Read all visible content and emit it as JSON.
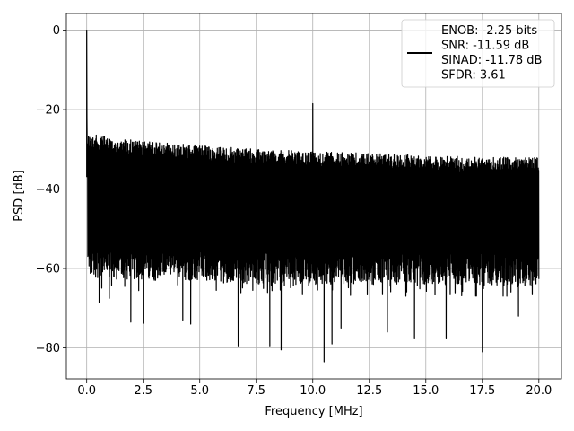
{
  "chart_data": {
    "type": "line",
    "title": "",
    "xlabel": "Frequency [MHz]",
    "ylabel": "PSD [dB]",
    "xlim": [
      -0.9,
      21.0
    ],
    "ylim": [
      -87.8,
      4.2
    ],
    "x_ticks": [
      0.0,
      2.5,
      5.0,
      7.5,
      10.0,
      12.5,
      15.0,
      17.5,
      20.0
    ],
    "x_tick_labels": [
      "0.0",
      "2.5",
      "5.0",
      "7.5",
      "10.0",
      "12.5",
      "15.0",
      "17.5",
      "20.0"
    ],
    "y_ticks": [
      0,
      -20,
      -40,
      -60,
      -80
    ],
    "y_tick_labels": [
      "0",
      "−20",
      "−40",
      "−60",
      "−80"
    ],
    "grid": true,
    "legend_position": "top-right",
    "series": [
      {
        "color": "#000000",
        "x_range": [
          0.0,
          20.0
        ],
        "peaks": [
          {
            "x": 0.0,
            "y": 0.0
          },
          {
            "x": 10.0,
            "y": -18.5
          }
        ],
        "noise_envelope": {
          "x": [
            0.05,
            1.0,
            2.5,
            5.0,
            7.5,
            10.0,
            12.5,
            15.0,
            17.5,
            20.0
          ],
          "upper": [
            -26,
            -27,
            -28,
            -29,
            -30,
            -30.5,
            -31,
            -31.5,
            -32,
            -32
          ],
          "lower_typical": [
            -62,
            -63,
            -63,
            -63,
            -64,
            -64,
            -64,
            -64,
            -64,
            -65
          ]
        },
        "dips": [
          {
            "x": 0.55,
            "y": -68.5
          },
          {
            "x": 1.0,
            "y": -67.5
          },
          {
            "x": 1.95,
            "y": -73.5
          },
          {
            "x": 2.5,
            "y": -73.8
          },
          {
            "x": 4.25,
            "y": -73.0
          },
          {
            "x": 4.6,
            "y": -74.0
          },
          {
            "x": 6.7,
            "y": -79.5
          },
          {
            "x": 8.1,
            "y": -79.5
          },
          {
            "x": 8.6,
            "y": -80.5
          },
          {
            "x": 10.5,
            "y": -83.5
          },
          {
            "x": 10.85,
            "y": -79.0
          },
          {
            "x": 11.25,
            "y": -75.0
          },
          {
            "x": 13.3,
            "y": -76.0
          },
          {
            "x": 14.5,
            "y": -77.5
          },
          {
            "x": 15.9,
            "y": -77.5
          },
          {
            "x": 17.5,
            "y": -81.0
          },
          {
            "x": 19.1,
            "y": -72.0
          }
        ]
      }
    ],
    "legend": {
      "lines": [
        "ENOB: -2.25 bits",
        "SNR: -11.59 dB",
        "SINAD: -11.78 dB",
        "SFDR: 3.61"
      ]
    }
  }
}
